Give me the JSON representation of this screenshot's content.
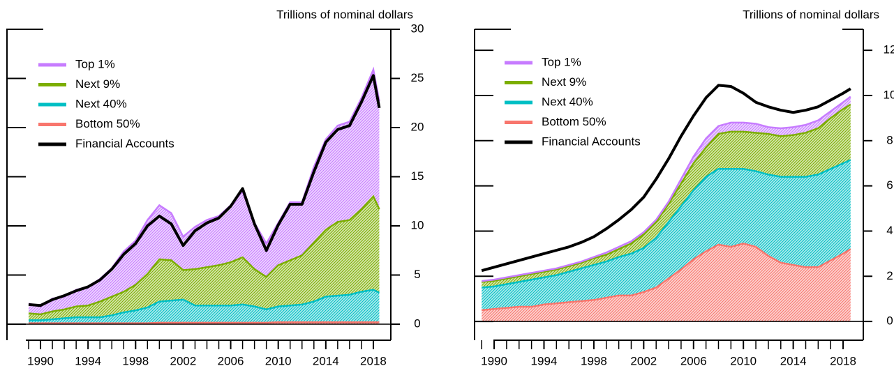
{
  "chart_data": [
    {
      "type": "area",
      "stacked": true,
      "y_label": "Trillions of nominal dollars",
      "x": [
        1989,
        1990,
        1991,
        1992,
        1993,
        1994,
        1995,
        1996,
        1997,
        1998,
        1999,
        2000,
        2001,
        2002,
        2003,
        2004,
        2005,
        2006,
        2007,
        2008,
        2009,
        2010,
        2011,
        2012,
        2013,
        2014,
        2015,
        2016,
        2017,
        2018,
        2018.5
      ],
      "series": [
        {
          "name": "Bottom 50%",
          "type": "area",
          "color": "#f8766d",
          "values": [
            0.1,
            0.1,
            0.1,
            0.1,
            0.1,
            0.1,
            0.1,
            0.1,
            0.1,
            0.1,
            0.1,
            0.15,
            0.15,
            0.15,
            0.15,
            0.15,
            0.15,
            0.15,
            0.15,
            0.15,
            0.15,
            0.2,
            0.2,
            0.2,
            0.2,
            0.2,
            0.2,
            0.2,
            0.2,
            0.2,
            0.2
          ]
        },
        {
          "name": "Next 40%",
          "type": "area",
          "color": "#00bfc4",
          "values": [
            0.3,
            0.3,
            0.4,
            0.5,
            0.6,
            0.6,
            0.6,
            0.8,
            1.1,
            1.3,
            1.6,
            2.15,
            2.25,
            2.35,
            1.75,
            1.75,
            1.75,
            1.75,
            1.85,
            1.65,
            1.35,
            1.6,
            1.7,
            1.8,
            2.1,
            2.6,
            2.7,
            2.8,
            3.1,
            3.3,
            3.0
          ]
        },
        {
          "name": "Next 9%",
          "type": "area",
          "color": "#7cae00",
          "values": [
            0.7,
            0.6,
            0.8,
            0.9,
            1.1,
            1.2,
            1.6,
            1.9,
            2.1,
            2.6,
            3.4,
            4.3,
            4.1,
            3.0,
            3.7,
            3.9,
            4.1,
            4.4,
            4.8,
            3.8,
            3.3,
            4.2,
            4.6,
            5.0,
            6.0,
            6.8,
            7.5,
            7.6,
            8.4,
            9.5,
            8.5
          ]
        },
        {
          "name": "Top 1%",
          "type": "area",
          "color": "#c77cff",
          "values": [
            1.0,
            0.8,
            1.3,
            1.3,
            1.7,
            1.9,
            2.3,
            2.9,
            4.1,
            4.5,
            5.5,
            5.5,
            4.8,
            3.4,
            4.3,
            4.8,
            5.0,
            5.8,
            6.7,
            4.7,
            3.4,
            4.3,
            5.9,
            5.4,
            7.7,
            9.2,
            9.8,
            10.0,
            11.3,
            12.9,
            11.0
          ]
        },
        {
          "name": "Financial Accounts",
          "type": "line",
          "color": "#000000",
          "values": [
            2.0,
            1.9,
            2.5,
            2.9,
            3.4,
            3.8,
            4.5,
            5.6,
            7.1,
            8.2,
            10.0,
            11.0,
            10.2,
            8.0,
            9.5,
            10.3,
            10.8,
            12.0,
            13.8,
            10.2,
            7.5,
            10.1,
            12.2,
            12.2,
            15.5,
            18.5,
            19.8,
            20.2,
            22.6,
            25.3,
            22.0
          ]
        }
      ],
      "xlim": [
        1987.18,
        2019.47
      ],
      "xticks": [
        1990,
        1994,
        1998,
        2002,
        2006,
        2010,
        2014,
        2018
      ],
      "xminorticks": [
        1989,
        1990,
        1991,
        1992,
        1993,
        1994,
        1995,
        1996,
        1997,
        1998,
        1999,
        2000,
        2001,
        2002,
        2003,
        2004,
        2005,
        2006,
        2007,
        2008,
        2009,
        2010,
        2011,
        2012,
        2013,
        2014,
        2015,
        2016,
        2017,
        2018
      ],
      "ylim": [
        -1.63,
        30
      ],
      "yticks": [
        0,
        5,
        10,
        15,
        20,
        25,
        30
      ],
      "legend": "upper left"
    },
    {
      "type": "area",
      "stacked": true,
      "y_label": "Trillions of nominal dollars",
      "x": [
        1989,
        1990,
        1991,
        1992,
        1993,
        1994,
        1995,
        1996,
        1997,
        1998,
        1999,
        2000,
        2001,
        2002,
        2003,
        2004,
        2005,
        2006,
        2007,
        2008,
        2009,
        2010,
        2011,
        2012,
        2013,
        2014,
        2015,
        2016,
        2017,
        2018,
        2018.6
      ],
      "series": [
        {
          "name": "Bottom 50%",
          "type": "area",
          "color": "#f8766d",
          "values": [
            0.5,
            0.55,
            0.6,
            0.65,
            0.65,
            0.75,
            0.8,
            0.85,
            0.9,
            0.95,
            1.05,
            1.15,
            1.15,
            1.3,
            1.5,
            1.9,
            2.3,
            2.75,
            3.1,
            3.4,
            3.3,
            3.45,
            3.3,
            2.9,
            2.6,
            2.5,
            2.4,
            2.4,
            2.7,
            3.0,
            3.2
          ]
        },
        {
          "name": "Next 40%",
          "type": "area",
          "color": "#00bfc4",
          "values": [
            1.0,
            1.0,
            1.05,
            1.1,
            1.2,
            1.2,
            1.25,
            1.35,
            1.45,
            1.55,
            1.6,
            1.7,
            1.85,
            1.95,
            2.2,
            2.5,
            2.8,
            3.05,
            3.3,
            3.35,
            3.45,
            3.3,
            3.35,
            3.6,
            3.8,
            3.9,
            4.0,
            4.1,
            4.05,
            4.0,
            3.95
          ]
        },
        {
          "name": "Next 9%",
          "type": "area",
          "color": "#7cae00",
          "values": [
            0.25,
            0.25,
            0.25,
            0.25,
            0.25,
            0.25,
            0.25,
            0.25,
            0.25,
            0.3,
            0.3,
            0.35,
            0.45,
            0.6,
            0.7,
            0.8,
            1.0,
            1.2,
            1.3,
            1.55,
            1.65,
            1.65,
            1.7,
            1.8,
            1.8,
            1.85,
            1.95,
            2.05,
            2.25,
            2.4,
            2.45
          ]
        },
        {
          "name": "Top 1%",
          "type": "area",
          "color": "#c77cff",
          "values": [
            0.04,
            0.05,
            0.05,
            0.05,
            0.05,
            0.05,
            0.05,
            0.05,
            0.05,
            0.05,
            0.1,
            0.1,
            0.1,
            0.1,
            0.1,
            0.1,
            0.2,
            0.3,
            0.4,
            0.35,
            0.4,
            0.4,
            0.4,
            0.3,
            0.35,
            0.35,
            0.35,
            0.35,
            0.3,
            0.3,
            0.35
          ]
        },
        {
          "name": "Financial Accounts",
          "type": "line",
          "color": "#000000",
          "values": [
            2.25,
            2.4,
            2.55,
            2.7,
            2.85,
            3.0,
            3.15,
            3.3,
            3.5,
            3.75,
            4.1,
            4.5,
            4.95,
            5.5,
            6.3,
            7.2,
            8.2,
            9.1,
            9.9,
            10.45,
            10.4,
            10.1,
            9.7,
            9.5,
            9.35,
            9.25,
            9.35,
            9.5,
            9.8,
            10.1,
            10.3
          ]
        }
      ],
      "xlim": [
        1988.43,
        2019.62
      ],
      "xticks": [
        1990,
        1994,
        1998,
        2002,
        2006,
        2010,
        2014,
        2018
      ],
      "xminorticks": [
        1989,
        1990,
        1991,
        1992,
        1993,
        1994,
        1995,
        1996,
        1997,
        1998,
        1999,
        2000,
        2001,
        2002,
        2003,
        2004,
        2005,
        2006,
        2007,
        2008,
        2009,
        2010,
        2011,
        2012,
        2013,
        2014,
        2015,
        2016,
        2017,
        2018
      ],
      "ylim": [
        -0.83,
        12.93
      ],
      "yticks": [
        0,
        2,
        4,
        6,
        8,
        10,
        12
      ],
      "legend": "upper left"
    }
  ]
}
